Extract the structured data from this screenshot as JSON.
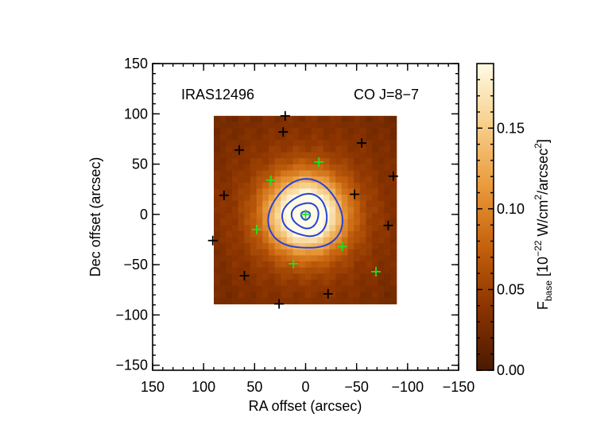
{
  "chart_data": {
    "type": "heatmap",
    "title": "",
    "annotations": {
      "source": "IRAS12496",
      "line": "CO J=8−7"
    },
    "xlabel": "RA offset (arcsec)",
    "ylabel": "Dec offset (arcsec)",
    "xlim": [
      150,
      -150
    ],
    "ylim": [
      -155,
      150
    ],
    "xticks": [
      150,
      100,
      50,
      0,
      -50,
      -100,
      -150
    ],
    "yticks": [
      150,
      100,
      50,
      0,
      -50,
      -100,
      -150
    ],
    "xtick_labels": [
      "150",
      "100",
      "50",
      "0",
      "−50",
      "−100",
      "−150"
    ],
    "ytick_labels": [
      "150",
      "100",
      "50",
      "0",
      "−50",
      "−100",
      "−150"
    ],
    "map_extent": {
      "ra": [
        90,
        -89
      ],
      "dec": [
        -89,
        98
      ]
    },
    "source_center": [
      0,
      0
    ],
    "peak_value": 0.19,
    "contour_levels": [
      0.06,
      0.09,
      0.12,
      0.15
    ],
    "contour_color": "#2741d8",
    "colorbar": {
      "range": [
        0.0,
        0.19
      ],
      "ticks": [
        0.0,
        0.05,
        0.1,
        0.15
      ],
      "tick_labels": [
        "0.00",
        "0.05",
        "0.10",
        "0.15"
      ],
      "label_prefix": "F",
      "label_sub": "base",
      "label_main": " [10",
      "label_exp": "−22",
      "label_units_a": " W/cm",
      "label_units_b": "/arcsec",
      "label_sq": "2",
      "label_close": "]",
      "colors": [
        "#4a1a00",
        "#8a3300",
        "#c4600c",
        "#ea9a3a",
        "#f7cf8a",
        "#fffbe6"
      ]
    },
    "detector_markers_black": [
      [
        20,
        98
      ],
      [
        22,
        82
      ],
      [
        -55,
        71
      ],
      [
        65,
        64
      ],
      [
        -86,
        38
      ],
      [
        -48,
        20
      ],
      [
        80,
        19
      ],
      [
        -81,
        -11
      ],
      [
        91,
        -26
      ],
      [
        60,
        -61
      ],
      [
        -22,
        -79
      ],
      [
        26,
        -89
      ]
    ],
    "detector_markers_green": [
      [
        -13,
        52
      ],
      [
        34,
        34
      ],
      [
        48,
        -15
      ],
      [
        0,
        0
      ],
      [
        -36,
        -32
      ],
      [
        12,
        -49
      ],
      [
        -69,
        -57
      ]
    ],
    "marker_colors": {
      "black": "#000000",
      "green": "#22e022"
    }
  }
}
